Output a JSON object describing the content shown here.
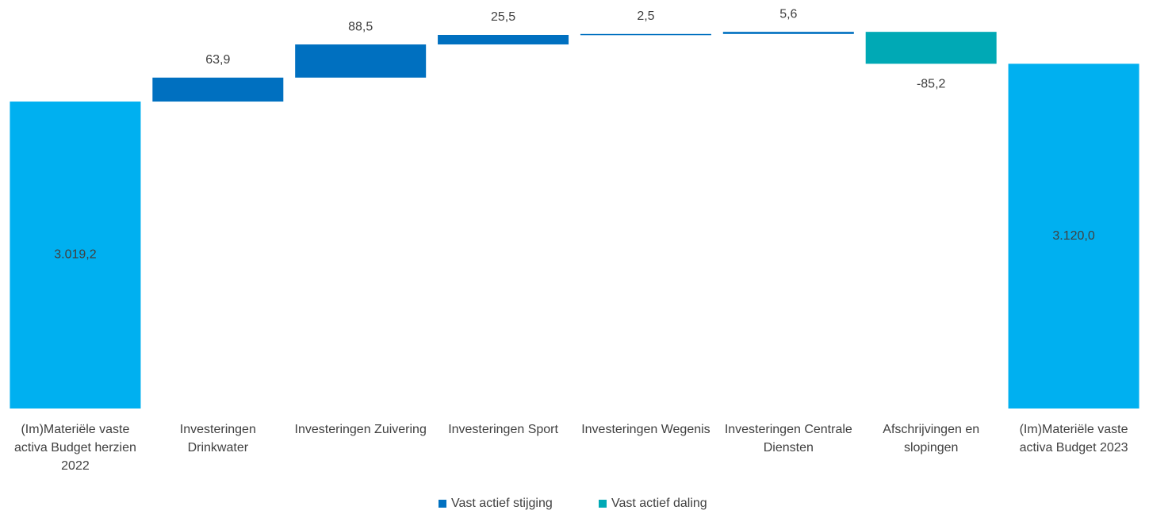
{
  "chart_data": {
    "type": "waterfall",
    "categories": [
      "(Im)Materiële vaste activa Budget herzien 2022",
      "Investeringen Drinkwater",
      "Investeringen Zuivering",
      "Investeringen Sport",
      "Investeringen Wegenis",
      "Investeringen Centrale Diensten",
      "Afschrijvingen en slopingen",
      "(Im)Materiële vaste activa Budget 2023"
    ],
    "values": [
      3019.2,
      63.9,
      88.5,
      25.5,
      2.5,
      5.6,
      -85.2,
      3120.0
    ],
    "value_labels": [
      "3.019,2",
      "63,9",
      "88,5",
      "25,5",
      "2,5",
      "5,6",
      "-85,2",
      "3.120,0"
    ],
    "is_total": [
      true,
      false,
      false,
      false,
      false,
      false,
      false,
      true
    ],
    "total_color": "#00b0f0",
    "series": [
      {
        "name": "Vast actief stijging",
        "color": "#0070c0"
      },
      {
        "name": "Vast actief daling",
        "color": "#00a9b5"
      }
    ],
    "ylim": [
      2200,
      3250
    ]
  }
}
